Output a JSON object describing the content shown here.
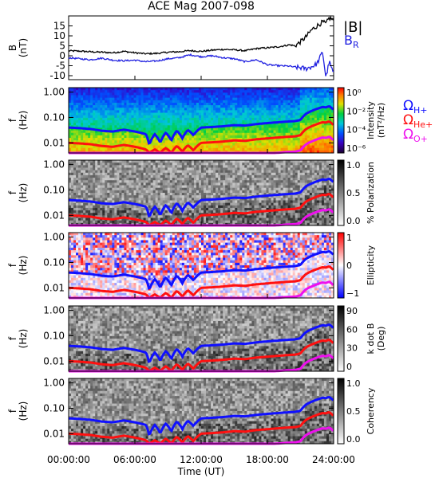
{
  "title": "ACE Mag 2007-098",
  "xaxis": {
    "label": "Time (UT)",
    "ticks": [
      "00:00:00",
      "06:00:00",
      "12:00:00",
      "18:00:00",
      "24:00:00"
    ],
    "range_hours": [
      0,
      24
    ]
  },
  "colors": {
    "btotal": "#000000",
    "br": "#2020e0",
    "h_plus": "#1010ff",
    "he_plus": "#ff1010",
    "o_plus": "#ee10ee"
  },
  "chart_data": [
    {
      "type": "line",
      "panel": "field",
      "ylabel": "B\n(nT)",
      "ylim": [
        -12,
        20
      ],
      "yticks": [
        "15",
        "10",
        "5",
        "0",
        "-5",
        "-10"
      ],
      "legend_placement": "right",
      "series": [
        {
          "name": "|B|",
          "x": [
            0,
            1,
            2,
            3,
            4,
            5,
            6,
            7,
            8,
            9,
            10,
            11,
            12,
            13,
            14,
            15,
            16,
            17,
            18,
            19,
            20,
            20.5,
            21,
            21.5,
            22,
            22.5,
            23,
            23.3,
            23.6,
            24
          ],
          "values": [
            2.5,
            2.3,
            2.0,
            1.8,
            1.5,
            2.2,
            1.5,
            1.0,
            1.2,
            1.8,
            2.0,
            2.6,
            2.2,
            2.8,
            3.2,
            3.0,
            2.5,
            3.6,
            4.0,
            4.5,
            5.5,
            5.0,
            7.0,
            9.5,
            13.0,
            15.0,
            17.0,
            16.0,
            19.0,
            18.0
          ]
        },
        {
          "name": "B",
          "name_sub": "R",
          "x": [
            0,
            1,
            2,
            3,
            4,
            5,
            6,
            7,
            8,
            9,
            10,
            11,
            12,
            13,
            14,
            15,
            16,
            17,
            18,
            19,
            20,
            20.5,
            21,
            21.5,
            22,
            22.5,
            23,
            23.3,
            23.6,
            24
          ],
          "values": [
            -1.0,
            -1.5,
            -2.0,
            -1.2,
            -2.2,
            -2.5,
            -2.2,
            -3.0,
            -2.6,
            -1.5,
            -1.0,
            0.5,
            -0.5,
            0.0,
            -1.0,
            -1.5,
            -3.0,
            -2.0,
            -4.5,
            -5.0,
            -5.2,
            -5.8,
            -6.0,
            -6.5,
            -5.5,
            -4.0,
            2.0,
            -11.0,
            -3.0,
            -9.0
          ]
        }
      ]
    },
    {
      "type": "heatmap",
      "panel": "intensity",
      "ylabel": "f\n(Hz)",
      "yscale": "log",
      "ylim": [
        0.004,
        1.5
      ],
      "yticks": [
        "1.00",
        "0.10",
        "0.01"
      ],
      "colorbar": {
        "label": "Intensity\n(nT²/Hz)",
        "ticks": [
          "10⁰",
          "10⁻²",
          "10⁻⁴",
          "10⁻⁶"
        ],
        "scale": "rainbow"
      }
    },
    {
      "type": "heatmap",
      "panel": "polarization",
      "ylabel": "f\n(Hz)",
      "yscale": "log",
      "ylim": [
        0.004,
        1.5
      ],
      "yticks": [
        "1.00",
        "0.10",
        "0.01"
      ],
      "colorbar": {
        "label": "% Polarization",
        "ticks": [
          "1.0",
          "0.5",
          "0.0"
        ],
        "scale": "gray"
      }
    },
    {
      "type": "heatmap",
      "panel": "ellipticity",
      "ylabel": "f\n(Hz)",
      "yscale": "log",
      "ylim": [
        0.004,
        1.5
      ],
      "yticks": [
        "1.00",
        "0.10",
        "0.01"
      ],
      "colorbar": {
        "label": "Ellipticity",
        "ticks": [
          "1",
          "0",
          "−1"
        ],
        "scale": "bluewhitered"
      }
    },
    {
      "type": "heatmap",
      "panel": "kdotb",
      "ylabel": "f\n(Hz)",
      "yscale": "log",
      "ylim": [
        0.004,
        1.5
      ],
      "yticks": [
        "1.00",
        "0.10",
        "0.01"
      ],
      "colorbar": {
        "label": "k dot B\n(Deg)",
        "ticks": [
          "90",
          "60",
          "30",
          "0"
        ],
        "scale": "gray"
      }
    },
    {
      "type": "heatmap",
      "panel": "coherency",
      "ylabel": "f\n(Hz)",
      "yscale": "log",
      "ylim": [
        0.004,
        1.5
      ],
      "yticks": [
        "1.00",
        "0.10",
        "0.01"
      ],
      "colorbar": {
        "label": "Coherency",
        "ticks": [
          "1.0",
          "0.5",
          "0.0"
        ],
        "scale": "gray"
      }
    }
  ],
  "gyrofrequencies": {
    "labels": [
      {
        "symbol": "Ω",
        "sub": "H+"
      },
      {
        "symbol": "Ω",
        "sub": "He+"
      },
      {
        "symbol": "Ω",
        "sub": "O+"
      }
    ],
    "x": [
      0,
      1,
      2,
      3,
      4,
      5,
      6,
      7,
      7.3,
      7.8,
      8.3,
      8.8,
      9.3,
      9.8,
      10.3,
      10.8,
      11.3,
      12,
      13,
      14,
      15,
      16,
      17,
      18,
      19,
      20,
      20.5,
      21,
      21.5,
      22,
      22.5,
      23,
      23.3,
      23.6,
      24
    ],
    "h_plus_hz": [
      0.04,
      0.038,
      0.035,
      0.03,
      0.028,
      0.033,
      0.028,
      0.022,
      0.008,
      0.022,
      0.01,
      0.025,
      0.012,
      0.03,
      0.015,
      0.032,
      0.02,
      0.04,
      0.042,
      0.045,
      0.05,
      0.048,
      0.055,
      0.06,
      0.065,
      0.07,
      0.072,
      0.08,
      0.14,
      0.18,
      0.22,
      0.26,
      0.25,
      0.28,
      0.2
    ],
    "he_plus_hz": [
      0.01,
      0.0095,
      0.0088,
      0.0075,
      0.007,
      0.0083,
      0.007,
      0.0055,
      0.004,
      0.0055,
      0.004,
      0.0063,
      0.004,
      0.0075,
      0.0045,
      0.008,
      0.005,
      0.01,
      0.0105,
      0.0113,
      0.0125,
      0.012,
      0.0138,
      0.015,
      0.0163,
      0.0175,
      0.018,
      0.02,
      0.035,
      0.045,
      0.055,
      0.065,
      0.063,
      0.07,
      0.05
    ],
    "o_plus_hz": [
      0.0025,
      0.0024,
      0.0022,
      0.0019,
      0.0018,
      0.0021,
      0.0018,
      0.0014,
      0.001,
      0.0014,
      0.001,
      0.0016,
      0.001,
      0.0019,
      0.0011,
      0.002,
      0.0013,
      0.0025,
      0.0026,
      0.0028,
      0.0031,
      0.003,
      0.0034,
      0.0038,
      0.0041,
      0.0044,
      0.0045,
      0.005,
      0.0088,
      0.0113,
      0.0138,
      0.0163,
      0.0156,
      0.0175,
      0.0125
    ]
  }
}
